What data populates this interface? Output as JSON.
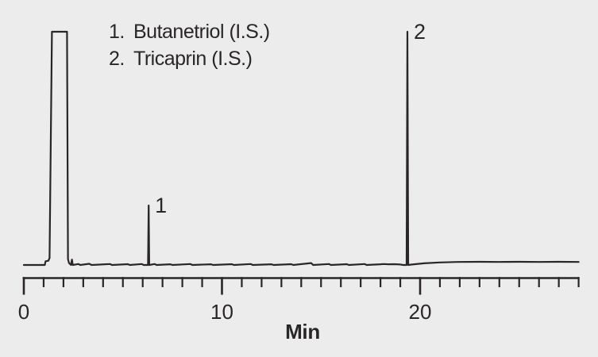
{
  "figure": {
    "description": "Gas chromatogram with two labeled internal standard peaks and a clipped solvent front peak",
    "x_axis_title": "Min"
  },
  "legend": {
    "items": [
      {
        "number": "1.",
        "name": "Butanetriol (I.S.)"
      },
      {
        "number": "2.",
        "name": "Tricaprin (I.S.)"
      }
    ]
  },
  "colors": {
    "background": "#ececec",
    "line": "#2a2627",
    "text": "#2a2627"
  },
  "chart_data": {
    "type": "line",
    "title": "",
    "xlabel": "Min",
    "ylabel": "",
    "x_unit": "minutes",
    "xlim": [
      0,
      28
    ],
    "x_major_ticks": [
      0,
      10,
      20
    ],
    "x_major_tick_labels": [
      "0",
      "10",
      "20"
    ],
    "x_minor_tick_interval_min": 1,
    "y_axis_shown": false,
    "grid": false,
    "legend_position": "top-left",
    "peaks": [
      {
        "label": "1",
        "name": "Butanetriol (I.S.)",
        "retention_time_min": 6.3,
        "height_pct_full_scale": 25.5
      },
      {
        "label": "2",
        "name": "Tricaprin (I.S.)",
        "retention_time_min": 19.36,
        "height_pct_full_scale": 100
      }
    ],
    "solvent_front_peak": {
      "start_min": 1.3,
      "end_min": 2.22,
      "height_pct_full_scale": 100,
      "flat_top_clipped": true,
      "labeled": false
    },
    "baseline_shift": {
      "start_min": 19.5,
      "settled_level_pct": 1.3
    },
    "trace": [
      [
        0.0,
        0
      ],
      [
        1.06,
        0
      ],
      [
        1.1,
        1.6
      ],
      [
        1.24,
        1.8
      ],
      [
        1.3,
        3
      ],
      [
        1.42,
        100
      ],
      [
        2.18,
        100
      ],
      [
        2.23,
        2.5
      ],
      [
        2.28,
        0.8
      ],
      [
        2.38,
        0
      ],
      [
        2.43,
        2.3
      ],
      [
        2.47,
        0
      ],
      [
        2.75,
        0.4
      ],
      [
        2.85,
        0
      ],
      [
        3.3,
        0.5
      ],
      [
        3.42,
        0
      ],
      [
        4.35,
        0.4
      ],
      [
        4.45,
        0
      ],
      [
        5.25,
        0.35
      ],
      [
        5.35,
        0
      ],
      [
        5.95,
        0.4
      ],
      [
        6.05,
        0
      ],
      [
        6.27,
        0
      ],
      [
        6.3,
        25.5
      ],
      [
        6.33,
        0
      ],
      [
        6.6,
        0.4
      ],
      [
        6.7,
        0
      ],
      [
        7.4,
        0.3
      ],
      [
        7.5,
        0
      ],
      [
        8.4,
        0.4
      ],
      [
        8.5,
        0
      ],
      [
        9.45,
        0.3
      ],
      [
        9.55,
        0
      ],
      [
        10.5,
        0.35
      ],
      [
        10.6,
        0
      ],
      [
        11.45,
        0.4
      ],
      [
        11.55,
        0
      ],
      [
        12.5,
        0.3
      ],
      [
        12.6,
        0
      ],
      [
        13.5,
        0.35
      ],
      [
        13.6,
        0
      ],
      [
        14.5,
        0.8
      ],
      [
        14.6,
        0
      ],
      [
        15.4,
        0.4
      ],
      [
        15.5,
        0
      ],
      [
        16.3,
        0.35
      ],
      [
        16.4,
        0
      ],
      [
        17.2,
        0.4
      ],
      [
        17.3,
        0
      ],
      [
        18.0,
        0.3
      ],
      [
        18.15,
        0.4
      ],
      [
        18.4,
        0.3
      ],
      [
        18.7,
        0.35
      ],
      [
        19.0,
        0.2
      ],
      [
        19.15,
        0
      ],
      [
        19.32,
        0
      ],
      [
        19.36,
        100
      ],
      [
        19.4,
        0
      ],
      [
        19.6,
        0.2
      ],
      [
        20.2,
        0.7
      ],
      [
        21.0,
        1.1
      ],
      [
        21.9,
        1.3
      ],
      [
        23.0,
        1.35
      ],
      [
        24.0,
        1.3
      ],
      [
        25.0,
        1.35
      ],
      [
        26.0,
        1.3
      ],
      [
        27.0,
        1.35
      ],
      [
        28.0,
        1.3
      ]
    ]
  }
}
